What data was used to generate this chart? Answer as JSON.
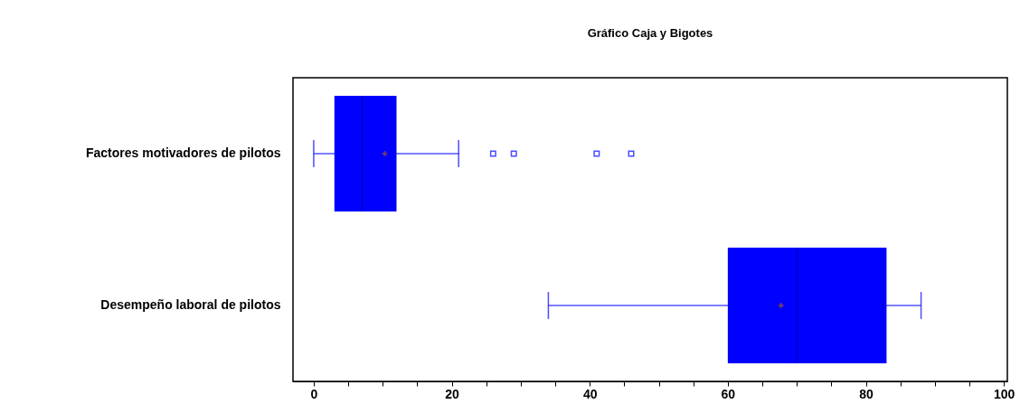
{
  "chart_data": {
    "type": "box",
    "title": "Gráfico Caja y Bigotes",
    "orientation": "horizontal",
    "color": "#0000ff",
    "categories": [
      "Factores motivadores de pilotos",
      "Desempeño laboral de pilotos"
    ],
    "boxes": [
      {
        "low": 0,
        "q1": 3,
        "median": 7,
        "q3": 12,
        "high": 21,
        "mean": 10.3,
        "outliers": [
          26,
          29,
          41,
          46
        ]
      },
      {
        "low": 34,
        "q1": 60,
        "median": 70,
        "q3": 83,
        "high": 88,
        "mean": 67.7
      }
    ],
    "xlim": [
      -3,
      100.5
    ],
    "xticks": [
      0,
      {
        "value": 5,
        "label": null
      },
      {
        "value": 10,
        "label": null
      },
      {
        "value": 15,
        "label": null
      },
      20,
      {
        "value": 25,
        "label": null
      },
      {
        "value": 30,
        "label": null
      },
      {
        "value": 35,
        "label": null
      },
      40,
      {
        "value": 45,
        "label": null
      },
      {
        "value": 50,
        "label": null
      },
      {
        "value": 55,
        "label": null
      },
      60,
      {
        "value": 65,
        "label": null
      },
      {
        "value": 70,
        "label": null
      },
      {
        "value": 75,
        "label": null
      },
      80,
      {
        "value": 85,
        "label": null
      },
      {
        "value": 90,
        "label": null
      },
      {
        "value": 95,
        "label": null
      },
      100
    ]
  }
}
